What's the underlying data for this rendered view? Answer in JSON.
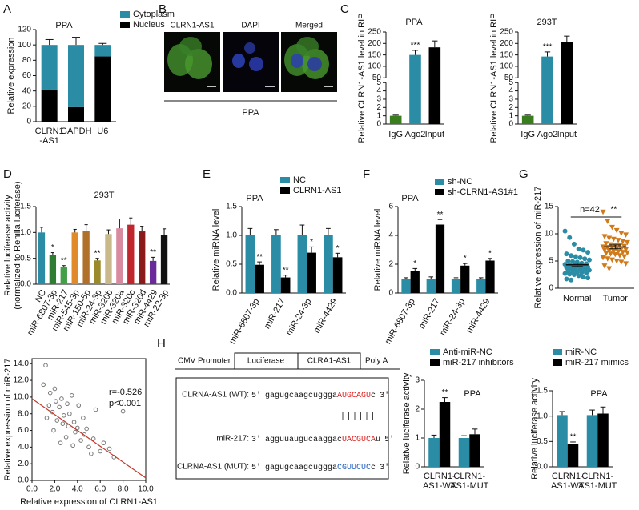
{
  "chart_data": [
    {
      "panel": "A",
      "type": "bar",
      "stacked": true,
      "title": "PPA",
      "ylabel": "Relative expression",
      "categories": [
        [
          "CLRN1",
          "-AS1"
        ],
        [
          "GAPDH"
        ],
        [
          "U6"
        ]
      ],
      "series": [
        {
          "name": "Cytoplasm",
          "color": "#2b8ca6",
          "values": [
            58,
            81,
            15
          ],
          "errors": [
            7,
            10,
            2
          ]
        },
        {
          "name": "Nucleus",
          "color": "#000000",
          "values": [
            42,
            19,
            85
          ],
          "errors": [
            7,
            3,
            8
          ]
        }
      ],
      "ylim": [
        0,
        120
      ],
      "yticks": [
        0,
        20,
        40,
        60,
        80,
        100,
        120
      ]
    },
    {
      "panel": "B",
      "type": "image",
      "labels": [
        "CLRN1-AS1",
        "DAPI",
        "Merged"
      ],
      "caption": "PPA"
    },
    {
      "panel": "C",
      "type": "bar",
      "title": "PPA",
      "ylabel": "Relative CLRN1-AS1 level in RIP",
      "categories": [
        "IgG",
        "Ago2",
        "Input"
      ],
      "values": [
        1,
        150,
        183
      ],
      "errors": [
        0.08,
        20,
        28
      ],
      "colors": [
        "#3a7d1e",
        "#2b8ca6",
        "#000000"
      ],
      "annotations": [
        null,
        "***",
        null
      ],
      "ylim": [
        0,
        250
      ],
      "ybreak": [
        5,
        50
      ],
      "yticks": [
        0,
        1,
        2,
        3,
        4,
        5,
        50,
        100,
        150,
        200,
        250
      ]
    },
    {
      "type": "bar",
      "title": "293T",
      "ylabel": "Relative CLRN1-AS1 level in RIP",
      "categories": [
        "IgG",
        "Ago2",
        "Input"
      ],
      "values": [
        1,
        143,
        207
      ],
      "errors": [
        0.08,
        20,
        25
      ],
      "colors": [
        "#3a7d1e",
        "#2b8ca6",
        "#000000"
      ],
      "annotations": [
        null,
        "***",
        null
      ],
      "ylim": [
        0,
        250
      ],
      "ybreak": [
        5,
        50
      ],
      "yticks": [
        0,
        1,
        2,
        3,
        4,
        5,
        50,
        100,
        150,
        200,
        250
      ]
    },
    {
      "panel": "D",
      "type": "bar",
      "title": "293T",
      "ylabel": [
        "Relative luciferase activity",
        "(normalized to Renilla luciferase)"
      ],
      "categories": [
        "NC",
        "miR-6807-3p",
        "miR-217",
        "miR-545-3p",
        "miR-150-5p",
        "miR-24-3p",
        "miR-320b",
        "miR-320a",
        "miR-320c",
        "miR-320d",
        "miR-4429",
        "miR-22-3p"
      ],
      "values": [
        1.0,
        0.56,
        0.33,
        1.0,
        1.03,
        0.46,
        0.97,
        1.08,
        1.15,
        1.02,
        0.45,
        0.95
      ],
      "errors": [
        0.1,
        0.05,
        0.03,
        0.06,
        0.12,
        0.04,
        0.08,
        0.18,
        0.13,
        0.1,
        0.07,
        0.12
      ],
      "colors": [
        "#2b8ca6",
        "#2e7d32",
        "#43a047",
        "#e08a2a",
        "#b0702a",
        "#9a8a2a",
        "#c8b88a",
        "#d88aa0",
        "#c0262d",
        "#8b1a1a",
        "#6a2a9a",
        "#111111"
      ],
      "annotations": [
        null,
        "*",
        "**",
        null,
        null,
        "**",
        null,
        null,
        null,
        null,
        "**",
        null
      ],
      "ylim": [
        0,
        1.5
      ],
      "yticks": [
        {
          "value": 0,
          "label": "0.0"
        },
        {
          "value": 0.5,
          "label": "0.5"
        },
        {
          "value": 1,
          "label": "1.0"
        },
        {
          "value": 1.5,
          "label": "1.5"
        }
      ]
    },
    {
      "panel": "E",
      "type": "bar",
      "title": "PPA",
      "ylabel": "Relative miRNA level",
      "categories": [
        "miR-6807-3p",
        "miR-217",
        "miR-24-3p",
        "miR-4429"
      ],
      "series": [
        {
          "name": "NC",
          "color": "#2b8ca6",
          "values": [
            1,
            1,
            1,
            1
          ],
          "errors": [
            0.12,
            0.1,
            0.18,
            0.12
          ]
        },
        {
          "name": "CLRN1-AS1",
          "color": "#000000",
          "values": [
            0.49,
            0.27,
            0.7,
            0.62
          ],
          "errors": [
            0.05,
            0.04,
            0.1,
            0.07
          ],
          "annotations": [
            "**",
            "**",
            "*",
            "*"
          ]
        }
      ],
      "ylim": [
        0,
        1.5
      ],
      "yticks": [
        {
          "value": 0,
          "label": "0.0"
        },
        {
          "value": 0.5,
          "label": "0.5"
        },
        {
          "value": 1,
          "label": "1.0"
        },
        {
          "value": 1.5,
          "label": "1.5"
        }
      ]
    },
    {
      "panel": "F",
      "type": "bar",
      "title": "PPA",
      "ylabel": "Relative miRNA level",
      "categories": [
        "miR-6807-3p",
        "miR-217",
        "miR-24-3p",
        "miR-4429"
      ],
      "series": [
        {
          "name": "sh-NC",
          "color": "#2b8ca6",
          "values": [
            1,
            1,
            1,
            1
          ],
          "errors": [
            0.06,
            0.12,
            0.06,
            0.06
          ]
        },
        {
          "name": "sh-CLRN1-AS1#1",
          "color": "#000000",
          "values": [
            1.55,
            4.75,
            1.9,
            2.25
          ],
          "errors": [
            0.15,
            0.35,
            0.15,
            0.15
          ],
          "annotations": [
            "*",
            "**",
            "*",
            "*"
          ]
        }
      ],
      "ylim": [
        0,
        6
      ],
      "yticks": [
        0,
        2,
        4,
        6
      ]
    },
    {
      "panel": "G",
      "type": "dotplot",
      "ylabel": "Relative expression of miR-217",
      "categories": [
        "Normal",
        "Tumor"
      ],
      "groups": [
        {
          "color": "#2b8ca6",
          "marker": "circle",
          "mean": 4.3,
          "error": 0.3,
          "values": [
            10.5,
            9.3,
            8.1,
            7.2,
            7.0,
            6.6,
            6.3,
            6.0,
            5.8,
            5.6,
            5.4,
            5.2,
            5.0,
            4.9,
            4.8,
            4.6,
            4.5,
            4.4,
            4.3,
            4.2,
            4.1,
            4.0,
            3.9,
            3.8,
            3.7,
            3.6,
            3.5,
            3.4,
            3.3,
            3.2,
            3.1,
            3.0,
            2.9,
            2.8,
            2.7,
            2.6,
            2.5,
            2.3,
            2.1,
            1.9,
            1.7,
            1.5
          ]
        },
        {
          "color": "#d07a1a",
          "marker": "triangle",
          "mean": 7.6,
          "error": 0.35,
          "values": [
            14.0,
            12.3,
            11.2,
            10.6,
            10.1,
            9.8,
            9.5,
            9.2,
            9.0,
            8.8,
            8.6,
            8.4,
            8.2,
            8.0,
            7.9,
            7.8,
            7.7,
            7.6,
            7.5,
            7.4,
            7.3,
            7.2,
            7.1,
            7.0,
            6.9,
            6.8,
            6.7,
            6.6,
            6.5,
            6.4,
            6.3,
            6.2,
            6.0,
            5.8,
            5.6,
            5.4,
            5.2,
            5.0,
            4.8,
            4.5,
            4.1,
            3.6
          ]
        }
      ],
      "annotation": "n=42",
      "significance": "**",
      "ylim": [
        0,
        15
      ],
      "yticks": [
        0,
        5,
        10,
        15
      ]
    },
    {
      "type": "scatter",
      "xlabel": "Relative expression of CLRN1-AS1",
      "ylabel": "Relative expression of miR-217",
      "x": [
        1.0,
        1.2,
        1.3,
        1.5,
        1.6,
        1.8,
        1.9,
        2.0,
        2.1,
        2.2,
        2.4,
        2.5,
        2.6,
        2.7,
        2.8,
        3.0,
        3.1,
        3.2,
        3.3,
        3.5,
        3.6,
        3.7,
        3.8,
        4.0,
        4.1,
        4.3,
        4.5,
        4.6,
        4.8,
        5.0,
        5.2,
        5.4,
        5.6,
        6.0,
        6.3,
        6.8,
        7.2,
        8.0
      ],
      "y": [
        11.5,
        13.8,
        7.5,
        9.0,
        10.5,
        8.2,
        6.0,
        11.0,
        9.5,
        7.2,
        8.8,
        4.5,
        9.8,
        6.8,
        7.8,
        5.2,
        9.2,
        6.5,
        8.0,
        10.2,
        4.2,
        7.0,
        5.8,
        6.3,
        9.0,
        4.8,
        7.5,
        5.5,
        6.2,
        4.0,
        3.2,
        5.0,
        8.5,
        3.5,
        4.5,
        3.8,
        2.8,
        8.3
      ],
      "color": "#777777",
      "fit": {
        "x": [
          0,
          10
        ],
        "y": [
          9.8,
          0.3
        ],
        "color": "#c0392b"
      },
      "annotations": [
        "r=-0.526",
        "p<0.001"
      ],
      "xlim": [
        0,
        10
      ],
      "xticks": [
        {
          "value": 0,
          "label": "0.0"
        },
        {
          "value": 2,
          "label": "2.0"
        },
        {
          "value": 4,
          "label": "4.0"
        },
        {
          "value": 6,
          "label": "6.0"
        },
        {
          "value": 8,
          "label": "8.0"
        },
        {
          "value": 10,
          "label": "10.0"
        }
      ],
      "ylim": [
        0,
        14.6
      ],
      "yticks": [
        {
          "value": 0,
          "label": "0.0"
        },
        {
          "value": 2,
          "label": "2.0"
        },
        {
          "value": 4,
          "label": "4.0"
        },
        {
          "value": 6,
          "label": "6.0"
        },
        {
          "value": 8,
          "label": "8.0"
        },
        {
          "value": 10,
          "label": "10.0"
        },
        {
          "value": 12,
          "label": "12.0"
        },
        {
          "value": 14,
          "label": "14.0"
        }
      ]
    },
    {
      "panel": "H",
      "type": "diagram",
      "construct": [
        "CMV Promoter",
        "Luciferase",
        "CLRA1-AS1",
        "Poly A"
      ],
      "rows": [
        {
          "label": "CLRNA-AS1 (WT):",
          "start": "5'",
          "seq": "gagugcaagcuggga",
          "site": "AUGCAGU",
          "tail": "c",
          "end": "3'",
          "site_color": "#e02020"
        },
        {
          "label": "miR-217:",
          "start": "3'",
          "seq": "agguuaugucaaggac",
          "site": "UACGUCA",
          "tail": "u",
          "end": "5'",
          "site_color": "#e02020"
        },
        {
          "label": "CLRNA-AS1 (MUT):",
          "start": "5'",
          "seq": "gagugcaagcuggga",
          "site": "CGUUCUC",
          "tail": "c",
          "end": "3'",
          "site_color": "#2060c0"
        }
      ],
      "pairing": "||||||"
    },
    {
      "type": "bar",
      "title": "PPA",
      "ylabel": "Relative luciferase activity",
      "categories": [
        [
          "CLRN1-",
          "AS1-WT"
        ],
        [
          "CLRN1-",
          "AS1-MUT"
        ]
      ],
      "series": [
        {
          "name": "Anti-miR-NC",
          "color": "#2b8ca6",
          "values": [
            1.0,
            1.0
          ],
          "errors": [
            0.1,
            0.08
          ]
        },
        {
          "name": "miR-217 inhibitors",
          "color": "#000000",
          "values": [
            2.25,
            1.13
          ],
          "errors": [
            0.15,
            0.18
          ],
          "annotations": [
            "**",
            null
          ]
        }
      ],
      "ylim": [
        0,
        3
      ],
      "yticks": [
        0,
        1,
        2,
        3
      ]
    },
    {
      "type": "bar",
      "title": "PPA",
      "ylabel": "Relative luciferase activity",
      "categories": [
        [
          "CLRN1-",
          "AS1-WT"
        ],
        [
          "CLRN1-",
          "AS1-MUT"
        ]
      ],
      "series": [
        {
          "name": "miR-NC",
          "color": "#2b8ca6",
          "values": [
            1.02,
            1.02
          ],
          "errors": [
            0.07,
            0.1
          ]
        },
        {
          "name": "miR-217 mimics",
          "color": "#000000",
          "values": [
            0.45,
            1.05
          ],
          "errors": [
            0.04,
            0.13
          ],
          "annotations": [
            "**",
            null
          ]
        }
      ],
      "ylim": [
        0,
        1.5
      ],
      "yticks": [
        {
          "value": 0,
          "label": "0.0"
        },
        {
          "value": 0.5,
          "label": "0.5"
        },
        {
          "value": 1,
          "label": "1.0"
        },
        {
          "value": 1.5,
          "label": "1.5"
        }
      ]
    }
  ]
}
